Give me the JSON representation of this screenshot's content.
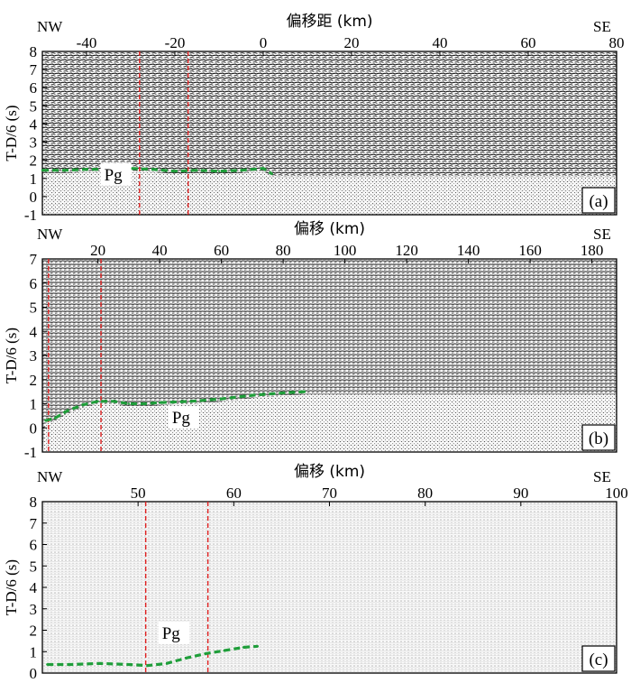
{
  "chart_data": [
    {
      "type": "scatter",
      "panel_label": "(a)",
      "title": "偏移距 (km)",
      "left_tag": "NW",
      "right_tag": "SE",
      "ylabel": "T-D/6 (s)",
      "xlim": [
        -50,
        80
      ],
      "ylim": [
        -1,
        8
      ],
      "xticks": [
        -40,
        -20,
        0,
        20,
        40,
        60,
        80
      ],
      "yticks": [
        -1,
        0,
        1,
        2,
        3,
        4,
        5,
        6,
        7,
        8
      ],
      "y_inverted": false,
      "phase_label": "Pg",
      "phase_label_pos": [
        -36,
        0.9
      ],
      "series": [
        {
          "name": "Pg",
          "color": "#1f9e3a",
          "x": [
            -50,
            -45,
            -40,
            -35,
            -30,
            -25,
            -20,
            -15,
            -10,
            -5,
            0,
            2
          ],
          "y": [
            1.45,
            1.45,
            1.5,
            1.5,
            1.55,
            1.5,
            1.4,
            1.45,
            1.4,
            1.45,
            1.55,
            1.25
          ]
        }
      ],
      "vlines": {
        "color": "#e02020",
        "x": [
          -28,
          -17
        ]
      }
    },
    {
      "type": "scatter",
      "panel_label": "(b)",
      "title": "偏移 (km)",
      "left_tag": "NW",
      "right_tag": "SE",
      "ylabel": "T-D/6 (s)",
      "xlim": [
        2,
        188
      ],
      "ylim": [
        -1,
        7
      ],
      "xticks": [
        20,
        40,
        60,
        80,
        100,
        120,
        140,
        160,
        180
      ],
      "yticks": [
        -1,
        0,
        1,
        2,
        3,
        4,
        5,
        6,
        7
      ],
      "y_inverted": false,
      "phase_label": "Pg",
      "phase_label_pos": [
        44,
        0.2
      ],
      "series": [
        {
          "name": "Pg",
          "color": "#1f9e3a",
          "x": [
            3,
            6,
            10,
            15,
            20,
            25,
            30,
            35,
            40,
            50,
            60,
            70,
            80,
            87
          ],
          "y": [
            0.3,
            0.4,
            0.7,
            0.95,
            1.1,
            1.1,
            1.0,
            1.0,
            1.05,
            1.1,
            1.2,
            1.35,
            1.45,
            1.5
          ]
        }
      ],
      "vlines": {
        "color": "#e02020",
        "x": [
          4,
          21
        ]
      }
    },
    {
      "type": "scatter",
      "panel_label": "(c)",
      "title": "偏移 (km)",
      "left_tag": "NW",
      "right_tag": "SE",
      "ylabel": "T-D/6 (s)",
      "xlim": [
        40,
        100
      ],
      "ylim": [
        0,
        8
      ],
      "xticks": [
        50,
        60,
        70,
        80,
        90,
        100
      ],
      "yticks": [
        0,
        1,
        2,
        3,
        4,
        5,
        6,
        7,
        8
      ],
      "y_inverted": false,
      "phase_label": "Pg",
      "phase_label_pos": [
        52.5,
        1.6
      ],
      "series": [
        {
          "name": "Pg",
          "color": "#1f9e3a",
          "x": [
            40.5,
            43,
            46,
            49,
            51,
            53,
            55,
            57,
            59,
            61,
            62.5
          ],
          "y": [
            0.4,
            0.4,
            0.45,
            0.4,
            0.35,
            0.45,
            0.7,
            0.9,
            1.05,
            1.2,
            1.25
          ]
        }
      ],
      "vlines": {
        "color": "#e02020",
        "x": [
          50.8,
          57.3
        ]
      }
    }
  ]
}
